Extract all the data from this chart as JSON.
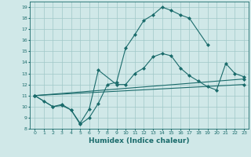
{
  "xlabel": "Humidex (Indice chaleur)",
  "bg_color": "#d0e8e8",
  "grid_color": "#a0c8c8",
  "line_color": "#1a6b6b",
  "curve1_x": [
    0,
    1,
    2,
    3,
    4,
    5,
    6,
    7,
    8,
    9,
    10,
    11,
    12,
    13,
    14,
    15,
    16,
    17,
    19
  ],
  "curve1_y": [
    11.0,
    10.5,
    10.0,
    10.2,
    9.7,
    8.4,
    9.0,
    10.3,
    12.0,
    12.2,
    15.3,
    16.5,
    17.8,
    18.3,
    19.0,
    18.7,
    18.3,
    18.0,
    15.6
  ],
  "curve2_x": [
    0,
    2,
    3,
    4,
    5,
    6,
    7,
    9,
    10,
    11,
    12,
    13,
    14,
    15,
    16,
    17,
    18,
    19,
    20,
    21,
    22,
    23
  ],
  "curve2_y": [
    11.0,
    10.0,
    10.1,
    9.7,
    8.5,
    9.8,
    13.3,
    12.0,
    12.0,
    13.0,
    13.5,
    14.5,
    14.8,
    14.6,
    13.5,
    12.8,
    12.3,
    11.8,
    11.5,
    13.9,
    13.0,
    12.7
  ],
  "curve3_x": [
    0,
    23
  ],
  "curve3_y": [
    11.0,
    12.5
  ],
  "curve4_x": [
    0,
    23
  ],
  "curve4_y": [
    11.0,
    12.0
  ],
  "xlim": [
    -0.5,
    23.5
  ],
  "ylim": [
    8,
    19.5
  ],
  "yticks": [
    8,
    9,
    10,
    11,
    12,
    13,
    14,
    15,
    16,
    17,
    18,
    19
  ],
  "xticks": [
    0,
    1,
    2,
    3,
    4,
    5,
    6,
    7,
    8,
    9,
    10,
    11,
    12,
    13,
    14,
    15,
    16,
    17,
    18,
    19,
    20,
    21,
    22,
    23
  ]
}
